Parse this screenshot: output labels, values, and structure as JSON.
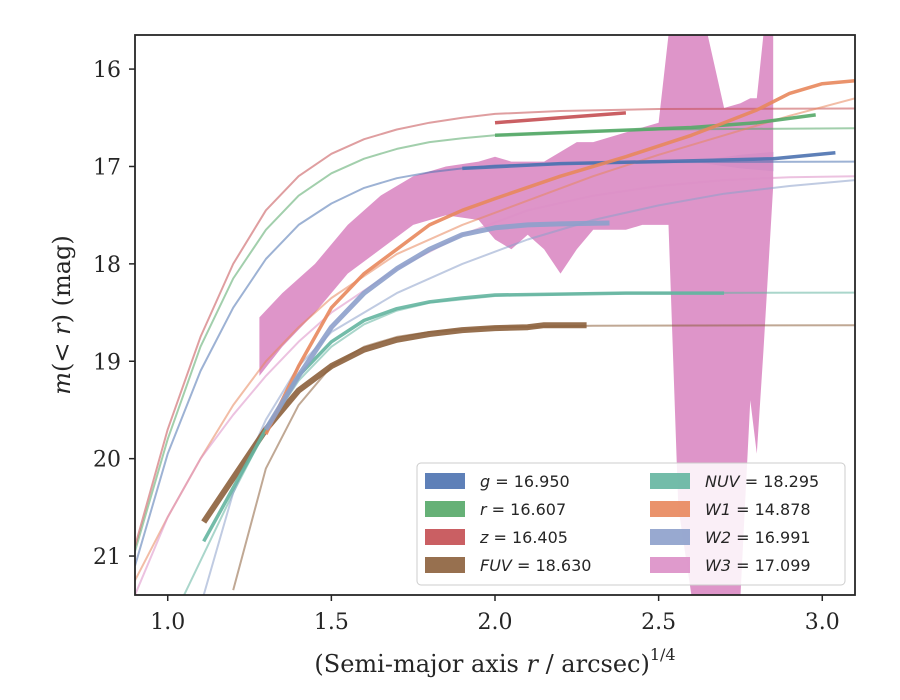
{
  "chart_data": {
    "type": "line",
    "xlabel": "(Semi-major axis r / arcsec)",
    "xlabel_parts": {
      "pre": "(Semi-major axis ",
      "var": "r",
      "post": " / arcsec)",
      "sup": "1/4"
    },
    "ylabel": "m(< r) (mag)",
    "ylabel_parts": {
      "var": "m",
      "mid": "(< ",
      "var2": "r",
      "post": ") (mag)"
    },
    "xlim": [
      0.9,
      3.1
    ],
    "ylim": [
      21.4,
      15.65
    ],
    "y_inverted": true,
    "grid": false,
    "legend_placement": "lower-right",
    "x_ticks": [
      {
        "value": 1.0,
        "label": "1.0"
      },
      {
        "value": 1.5,
        "label": "1.5"
      },
      {
        "value": 2.0,
        "label": "2.0"
      },
      {
        "value": 2.5,
        "label": "2.5"
      },
      {
        "value": 3.0,
        "label": "3.0"
      }
    ],
    "y_ticks": [
      {
        "value": 16,
        "label": "16"
      },
      {
        "value": 17,
        "label": "17"
      },
      {
        "value": 18,
        "label": "18"
      },
      {
        "value": 19,
        "label": "19"
      },
      {
        "value": 20,
        "label": "20"
      },
      {
        "value": 21,
        "label": "21"
      }
    ],
    "series": [
      {
        "name": "g = 16.950",
        "label_var": "g",
        "label_value": "= 16.950",
        "color": "#4c72b0",
        "model": [
          [
            0.9,
            21.1
          ],
          [
            1.0,
            19.95
          ],
          [
            1.1,
            19.1
          ],
          [
            1.2,
            18.45
          ],
          [
            1.3,
            17.95
          ],
          [
            1.4,
            17.6
          ],
          [
            1.5,
            17.38
          ],
          [
            1.6,
            17.22
          ],
          [
            1.7,
            17.12
          ],
          [
            1.8,
            17.06
          ],
          [
            1.9,
            17.02
          ],
          [
            2.0,
            16.99
          ],
          [
            2.2,
            16.97
          ],
          [
            2.5,
            16.955
          ],
          [
            3.1,
            16.95
          ]
        ],
        "data": [
          [
            1.9,
            17.02
          ],
          [
            2.2,
            16.97
          ],
          [
            2.5,
            16.95
          ],
          [
            2.85,
            16.92
          ],
          [
            3.04,
            16.86
          ]
        ],
        "band": [
          [
            2.6,
            16.95,
            16.95
          ],
          [
            2.75,
            16.88,
            17.02
          ],
          [
            2.85,
            16.85,
            17.05
          ]
        ]
      },
      {
        "name": "r = 16.607",
        "label_var": "r",
        "label_value": "= 16.607",
        "color": "#55a868",
        "model": [
          [
            0.9,
            20.95
          ],
          [
            1.0,
            19.8
          ],
          [
            1.1,
            18.85
          ],
          [
            1.2,
            18.15
          ],
          [
            1.3,
            17.65
          ],
          [
            1.4,
            17.3
          ],
          [
            1.5,
            17.07
          ],
          [
            1.6,
            16.92
          ],
          [
            1.7,
            16.82
          ],
          [
            1.8,
            16.75
          ],
          [
            1.9,
            16.71
          ],
          [
            2.0,
            16.68
          ],
          [
            2.2,
            16.65
          ],
          [
            2.5,
            16.62
          ],
          [
            3.1,
            16.607
          ]
        ],
        "data": [
          [
            2.0,
            16.68
          ],
          [
            2.3,
            16.64
          ],
          [
            2.6,
            16.6
          ],
          [
            2.8,
            16.55
          ],
          [
            2.98,
            16.47
          ]
        ],
        "band": []
      },
      {
        "name": "z = 16.405",
        "label_var": "z",
        "label_value": "= 16.405",
        "color": "#c44e52",
        "model": [
          [
            0.9,
            20.9
          ],
          [
            1.0,
            19.7
          ],
          [
            1.1,
            18.75
          ],
          [
            1.2,
            18.0
          ],
          [
            1.3,
            17.45
          ],
          [
            1.4,
            17.1
          ],
          [
            1.5,
            16.87
          ],
          [
            1.6,
            16.72
          ],
          [
            1.7,
            16.62
          ],
          [
            1.8,
            16.55
          ],
          [
            1.9,
            16.5
          ],
          [
            2.0,
            16.46
          ],
          [
            2.2,
            16.43
          ],
          [
            2.5,
            16.41
          ],
          [
            3.1,
            16.405
          ]
        ],
        "data": [
          [
            2.0,
            16.55
          ],
          [
            2.2,
            16.5
          ],
          [
            2.4,
            16.45
          ]
        ],
        "band": []
      },
      {
        "name": "FUV = 18.630",
        "label_var": "FUV",
        "label_value": "= 18.630",
        "color": "#8c613c",
        "model": [
          [
            1.2,
            21.35
          ],
          [
            1.3,
            20.1
          ],
          [
            1.4,
            19.45
          ],
          [
            1.5,
            19.05
          ],
          [
            1.6,
            18.85
          ],
          [
            1.7,
            18.75
          ],
          [
            1.8,
            18.7
          ],
          [
            2.0,
            18.65
          ],
          [
            2.3,
            18.635
          ],
          [
            3.1,
            18.63
          ]
        ],
        "data": [
          [
            1.11,
            20.65
          ],
          [
            1.2,
            20.2
          ],
          [
            1.3,
            19.7
          ],
          [
            1.4,
            19.3
          ],
          [
            1.5,
            19.05
          ],
          [
            1.6,
            18.88
          ],
          [
            1.7,
            18.78
          ],
          [
            1.8,
            18.72
          ],
          [
            1.9,
            18.68
          ],
          [
            2.0,
            18.66
          ],
          [
            2.1,
            18.65
          ],
          [
            2.15,
            18.63
          ],
          [
            2.28,
            18.63
          ]
        ],
        "band": []
      },
      {
        "name": "NUV = 18.295",
        "label_var": "NUV",
        "label_value": "= 18.295",
        "color": "#64b5a0",
        "model": [
          [
            1.05,
            21.4
          ],
          [
            1.2,
            20.35
          ],
          [
            1.3,
            19.7
          ],
          [
            1.4,
            19.2
          ],
          [
            1.5,
            18.85
          ],
          [
            1.6,
            18.62
          ],
          [
            1.7,
            18.48
          ],
          [
            1.8,
            18.4
          ],
          [
            2.0,
            18.33
          ],
          [
            2.3,
            18.3
          ],
          [
            3.1,
            18.295
          ]
        ],
        "data": [
          [
            1.11,
            20.85
          ],
          [
            1.2,
            20.3
          ],
          [
            1.3,
            19.7
          ],
          [
            1.4,
            19.15
          ],
          [
            1.5,
            18.8
          ],
          [
            1.6,
            18.58
          ],
          [
            1.7,
            18.46
          ],
          [
            1.8,
            18.39
          ],
          [
            1.9,
            18.35
          ],
          [
            2.0,
            18.32
          ],
          [
            2.2,
            18.31
          ],
          [
            2.4,
            18.3
          ],
          [
            2.7,
            18.3
          ]
        ],
        "band": []
      },
      {
        "name": "W1 = 14.878",
        "label_var": "W1",
        "label_value": "= 14.878",
        "color": "#e8875c",
        "model": [
          [
            0.9,
            21.25
          ],
          [
            1.0,
            20.6
          ],
          [
            1.1,
            20.0
          ],
          [
            1.2,
            19.45
          ],
          [
            1.3,
            19.0
          ],
          [
            1.4,
            18.65
          ],
          [
            1.5,
            18.35
          ],
          [
            1.7,
            17.9
          ],
          [
            1.9,
            17.6
          ],
          [
            2.1,
            17.35
          ],
          [
            2.3,
            17.1
          ],
          [
            2.5,
            16.88
          ],
          [
            2.7,
            16.68
          ],
          [
            2.9,
            16.48
          ],
          [
            3.1,
            16.3
          ]
        ],
        "data": [
          [
            1.3,
            19.75
          ],
          [
            1.4,
            19.05
          ],
          [
            1.5,
            18.45
          ],
          [
            1.6,
            18.1
          ],
          [
            1.7,
            17.85
          ],
          [
            1.8,
            17.6
          ],
          [
            1.9,
            17.45
          ],
          [
            2.0,
            17.33
          ],
          [
            2.2,
            17.1
          ],
          [
            2.4,
            16.9
          ],
          [
            2.6,
            16.68
          ],
          [
            2.7,
            16.55
          ],
          [
            2.8,
            16.42
          ],
          [
            2.9,
            16.25
          ],
          [
            3.0,
            16.15
          ],
          [
            3.1,
            16.12
          ]
        ],
        "band": []
      },
      {
        "name": "W2 = 16.991",
        "label_var": "W2",
        "label_value": "= 16.991",
        "color": "#8da0cb",
        "model": [
          [
            1.11,
            21.4
          ],
          [
            1.2,
            20.35
          ],
          [
            1.3,
            19.6
          ],
          [
            1.4,
            19.05
          ],
          [
            1.5,
            18.7
          ],
          [
            1.7,
            18.3
          ],
          [
            1.9,
            18.0
          ],
          [
            2.1,
            17.75
          ],
          [
            2.3,
            17.55
          ],
          [
            2.5,
            17.4
          ],
          [
            2.7,
            17.28
          ],
          [
            2.9,
            17.2
          ],
          [
            3.1,
            17.14
          ]
        ],
        "data": [
          [
            1.3,
            19.7
          ],
          [
            1.4,
            19.15
          ],
          [
            1.5,
            18.65
          ],
          [
            1.6,
            18.3
          ],
          [
            1.7,
            18.05
          ],
          [
            1.8,
            17.85
          ],
          [
            1.9,
            17.7
          ],
          [
            2.0,
            17.63
          ],
          [
            2.1,
            17.6
          ],
          [
            2.2,
            17.59
          ],
          [
            2.35,
            17.58
          ]
        ],
        "band": []
      },
      {
        "name": "W3 = 17.099",
        "label_var": "W3",
        "label_value": "= 17.099",
        "color": "#dc8fc6",
        "model": [
          [
            0.9,
            21.4
          ],
          [
            1.0,
            20.6
          ],
          [
            1.1,
            20.0
          ],
          [
            1.2,
            19.55
          ],
          [
            1.3,
            19.15
          ],
          [
            1.4,
            18.8
          ],
          [
            1.5,
            18.5
          ],
          [
            1.7,
            18.05
          ],
          [
            1.9,
            17.7
          ],
          [
            2.1,
            17.45
          ],
          [
            2.3,
            17.3
          ],
          [
            2.5,
            17.2
          ],
          [
            2.7,
            17.14
          ],
          [
            2.9,
            17.11
          ],
          [
            3.1,
            17.1
          ]
        ],
        "data": [],
        "band": [
          [
            1.28,
            18.55,
            19.15
          ],
          [
            1.35,
            18.3,
            18.85
          ],
          [
            1.45,
            18.0,
            18.5
          ],
          [
            1.55,
            17.6,
            18.1
          ],
          [
            1.65,
            17.3,
            17.85
          ],
          [
            1.75,
            17.1,
            17.6
          ],
          [
            1.85,
            17.0,
            17.5
          ],
          [
            1.95,
            16.95,
            17.55
          ],
          [
            2.0,
            16.9,
            17.75
          ],
          [
            2.05,
            16.95,
            17.85
          ],
          [
            2.1,
            16.95,
            17.7
          ],
          [
            2.15,
            16.95,
            17.85
          ],
          [
            2.2,
            16.85,
            18.1
          ],
          [
            2.25,
            16.75,
            17.85
          ],
          [
            2.3,
            16.75,
            17.65
          ],
          [
            2.35,
            16.7,
            17.65
          ],
          [
            2.4,
            16.65,
            17.65
          ],
          [
            2.45,
            16.6,
            17.6
          ],
          [
            2.5,
            16.55,
            17.6
          ],
          [
            2.53,
            15.65,
            17.6
          ],
          [
            2.56,
            15.65,
            20.5
          ],
          [
            2.6,
            15.65,
            21.4
          ],
          [
            2.65,
            15.65,
            21.4
          ],
          [
            2.7,
            16.4,
            21.4
          ],
          [
            2.75,
            16.35,
            21.4
          ],
          [
            2.78,
            16.3,
            19.4
          ],
          [
            2.8,
            16.3,
            19.95
          ],
          [
            2.82,
            15.65,
            18.9
          ],
          [
            2.85,
            15.65,
            17.2
          ]
        ]
      }
    ]
  }
}
